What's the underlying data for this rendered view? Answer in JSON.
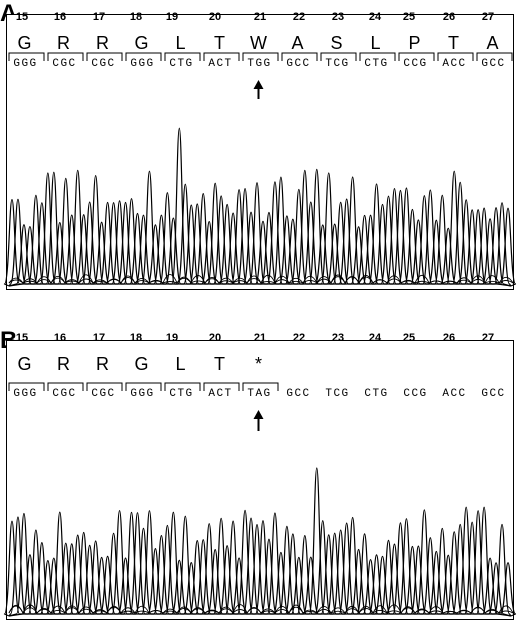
{
  "panels": [
    {
      "id": "A",
      "label": "A",
      "codon_numbers": [
        "15",
        "16",
        "17",
        "18",
        "19",
        "20",
        "21",
        "22",
        "23",
        "24",
        "25",
        "26",
        "27"
      ],
      "amino_acids": [
        "G",
        "R",
        "R",
        "G",
        "L",
        "T",
        "W",
        "A",
        "S",
        "L",
        "P",
        "T",
        "A"
      ],
      "codons": [
        "GGG",
        "CGC",
        "CGC",
        "GGG",
        "CTG",
        "ACT",
        "TGG",
        "GCC",
        "TCG",
        "CTG",
        "CCG",
        "ACC",
        "GCC"
      ],
      "boxed_codons": true,
      "arrow_codon_index": 6
    },
    {
      "id": "B",
      "label": "B",
      "codon_numbers": [
        "15",
        "16",
        "17",
        "18",
        "19",
        "20",
        "21",
        "22",
        "23",
        "24",
        "25",
        "26",
        "27"
      ],
      "amino_acids": [
        "G",
        "R",
        "R",
        "G",
        "L",
        "T",
        "*"
      ],
      "codons": [
        "GGG",
        "CGC",
        "CGC",
        "GGG",
        "CTG",
        "ACT",
        "TAG",
        "GCC",
        "TCG",
        "CTG",
        "CCG",
        "ACC",
        "GCC"
      ],
      "boxed_codons_count": 7,
      "arrow_codon_index": 6
    }
  ]
}
